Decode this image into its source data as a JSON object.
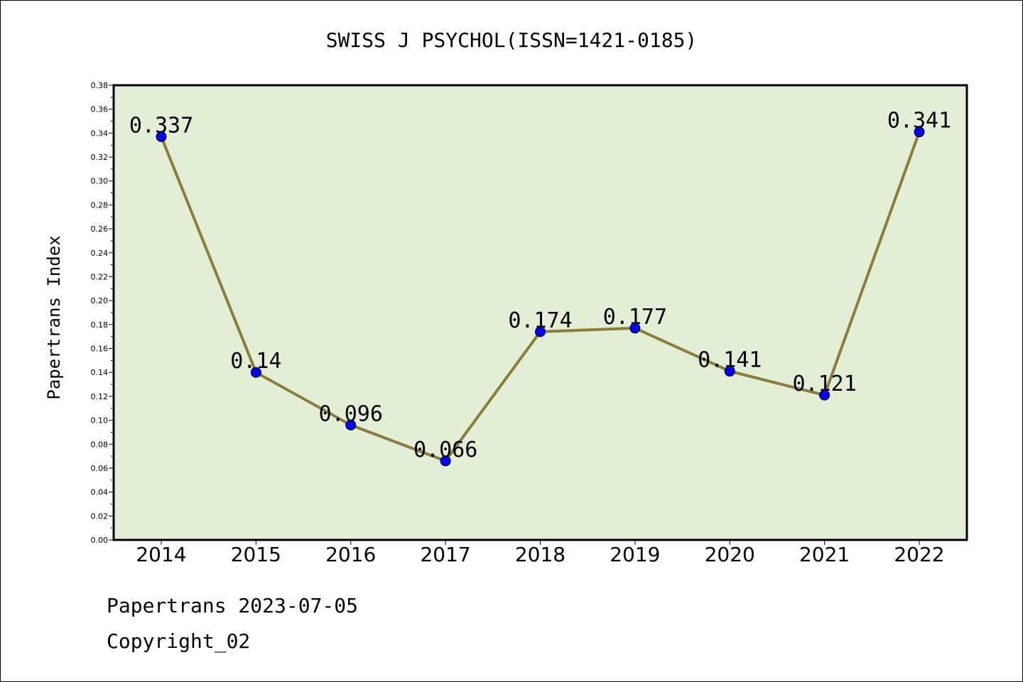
{
  "chart_data": {
    "type": "line",
    "title": "SWISS J PSYCHOL(ISSN=1421-0185)",
    "xlabel": "",
    "ylabel": "Papertrans Index",
    "categories": [
      "2014",
      "2015",
      "2016",
      "2017",
      "2018",
      "2019",
      "2020",
      "2021",
      "2022"
    ],
    "values": [
      0.337,
      0.14,
      0.096,
      0.066,
      0.174,
      0.177,
      0.141,
      0.121,
      0.341
    ],
    "data_labels": [
      "0.337",
      "0.14",
      "0.096",
      "0.066",
      "0.174",
      "0.177",
      "0.141",
      "0.121",
      "0.341"
    ],
    "ylim": [
      0,
      0.38
    ],
    "yticks": [
      "0.00",
      "0.02",
      "0.04",
      "0.06",
      "0.08",
      "0.10",
      "0.12",
      "0.14",
      "0.16",
      "0.18",
      "0.20",
      "0.22",
      "0.24",
      "0.26",
      "0.28",
      "0.30",
      "0.32",
      "0.34",
      "0.36",
      "0.38"
    ],
    "grid": false,
    "colors": {
      "plot_background": "#e2efd6",
      "line": "#8b7d3a",
      "marker": "#0000ff"
    }
  },
  "footer": {
    "date_line": "Papertrans 2023-07-05",
    "copyright": "Copyright_02"
  }
}
